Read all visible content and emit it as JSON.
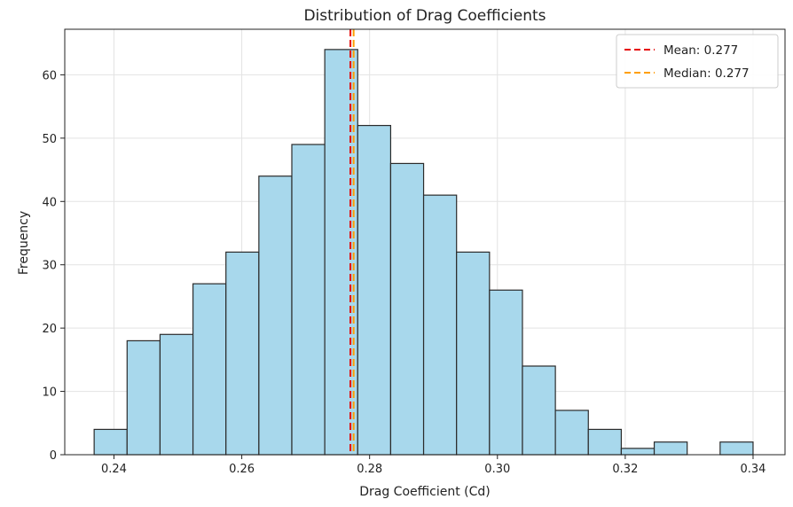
{
  "chart_data": {
    "type": "bar",
    "title": "Distribution of Drag Coefficients",
    "xlabel": "Drag Coefficient (Cd)",
    "ylabel": "Frequency",
    "xlim": [
      0.2323,
      0.345
    ],
    "ylim": [
      0,
      67.2
    ],
    "grid": true,
    "x_ticks": [
      0.24,
      0.26,
      0.28,
      0.3,
      0.32,
      0.34
    ],
    "x_tick_labels": [
      "0.24",
      "0.26",
      "0.28",
      "0.30",
      "0.32",
      "0.34"
    ],
    "y_ticks": [
      0,
      10,
      20,
      30,
      40,
      50,
      60
    ],
    "y_tick_labels": [
      "0",
      "10",
      "20",
      "30",
      "40",
      "50",
      "60"
    ],
    "bin_start": 0.2369,
    "bin_width": 0.005155,
    "values": [
      4,
      18,
      19,
      27,
      32,
      44,
      49,
      64,
      52,
      46,
      41,
      32,
      26,
      14,
      7,
      4,
      1,
      2,
      0,
      2
    ],
    "bar_color": "#a8d8ec",
    "bar_edge_color": "#2b2b2b",
    "reference_lines": [
      {
        "name": "Mean: 0.277",
        "x": 0.277,
        "color": "#e60000"
      },
      {
        "name": "Median: 0.277",
        "x": 0.2775,
        "color": "#ff9f00"
      }
    ],
    "legend_position": "top-right"
  }
}
